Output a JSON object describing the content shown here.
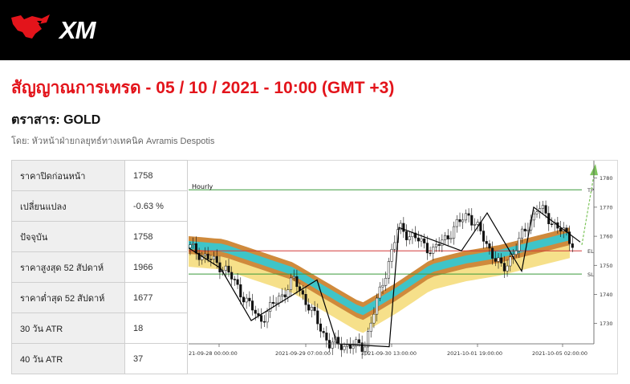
{
  "brand": {
    "logo_text": "XM"
  },
  "header": {
    "signal_title": "สัญญาณการเทรด - 05 / 10 / 2021 - 10:00 (GMT +3)",
    "instrument": "ตราสาร: GOLD",
    "author": "โดย: หัวหน้าฝ่ายกลยุทธ์ทางเทคนิค Avramis Despotis"
  },
  "stats": [
    {
      "label": "ราคาปิดก่อนหน้า",
      "value": "1758"
    },
    {
      "label": "เปลี่ยนแปลง",
      "value": "-0.63 %"
    },
    {
      "label": "ปัจจุบัน",
      "value": "1758"
    },
    {
      "label": "ราคาสูงสุด 52 สัปดาห์",
      "value": "1966"
    },
    {
      "label": "ราคาต่ำสุด 52 สัปดาห์",
      "value": "1677"
    },
    {
      "label": "30 วัน ATR",
      "value": "18"
    },
    {
      "label": "40 วัน ATR",
      "value": "37"
    }
  ],
  "colors": {
    "brand_red": "#e3141b",
    "tp_line": "#3a9a3a",
    "entry_line": "#d23a3a",
    "band_outer": "#f6e08a",
    "band_mid": "#cf8a3c",
    "band_inner": "#3fc4c8"
  },
  "chart_data": {
    "type": "candlestick",
    "timeframe_label": "Hourly",
    "x_tick_labels": [
      "21-09-28 00:00:00",
      "2021-09-29 07:00:00",
      "2021-09-30 13:00:00",
      "2021-10-01 19:00:00",
      "2021-10-05 02:00:00"
    ],
    "y_ticks": [
      1730,
      1740,
      1750,
      1760,
      1770,
      1780
    ],
    "y_range": [
      1723,
      1786
    ],
    "levels": [
      {
        "label": "TP",
        "value": 1776
      },
      {
        "label": "EL",
        "value": 1755
      },
      {
        "label": "SL",
        "value": 1747
      }
    ],
    "price_path_approx": [
      1756,
      1749,
      1731,
      1745,
      1723,
      1722,
      1763,
      1755,
      1768,
      1748,
      1770,
      1758
    ],
    "band_center_approx": [
      1756,
      1755,
      1751,
      1747,
      1740,
      1733,
      1740,
      1748,
      1751,
      1753,
      1756,
      1759
    ],
    "target_arrow": "up"
  }
}
